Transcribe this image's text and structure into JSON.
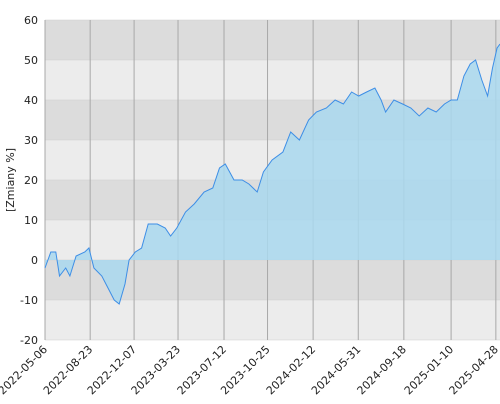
{
  "chart_data": {
    "type": "area",
    "y_label": "[Zmiany %]",
    "x": [
      "2022-05-06",
      "2022-05-20",
      "2022-06-01",
      "2022-06-10",
      "2022-06-25",
      "2022-07-05",
      "2022-07-20",
      "2022-08-10",
      "2022-08-20",
      "2022-09-01",
      "2022-09-20",
      "2022-10-05",
      "2022-10-20",
      "2022-11-01",
      "2022-11-15",
      "2022-11-25",
      "2022-12-10",
      "2022-12-25",
      "2023-01-10",
      "2023-02-01",
      "2023-02-20",
      "2023-03-05",
      "2023-03-20",
      "2023-04-10",
      "2023-05-01",
      "2023-05-25",
      "2023-06-15",
      "2023-07-01",
      "2023-07-15",
      "2023-08-05",
      "2023-08-25",
      "2023-09-10",
      "2023-09-30",
      "2023-10-15",
      "2023-11-05",
      "2023-12-01",
      "2023-12-20",
      "2024-01-10",
      "2024-02-01",
      "2024-02-20",
      "2024-03-15",
      "2024-04-05",
      "2024-04-25",
      "2024-05-15",
      "2024-06-01",
      "2024-06-20",
      "2024-07-10",
      "2024-07-25",
      "2024-08-05",
      "2024-08-25",
      "2024-09-15",
      "2024-10-05",
      "2024-10-25",
      "2024-11-15",
      "2024-12-05",
      "2024-12-25",
      "2025-01-10",
      "2025-01-25",
      "2025-02-10",
      "2025-02-25",
      "2025-03-10",
      "2025-03-25",
      "2025-04-08",
      "2025-04-20",
      "2025-05-01",
      "2025-05-08"
    ],
    "series": [
      {
        "color": "#3d8ee6",
        "values": [
          -2,
          2,
          2,
          -4,
          -2,
          -4,
          1,
          2,
          3,
          -2,
          -4,
          -7,
          -10,
          -11,
          -6,
          0,
          2,
          3,
          9,
          9,
          8,
          6,
          8,
          12,
          14,
          17,
          18,
          23,
          24,
          20,
          20,
          19,
          17,
          22,
          25,
          27,
          32,
          30,
          35,
          37,
          38,
          40,
          39,
          42,
          41,
          42,
          43,
          40,
          37,
          40,
          39,
          38,
          36,
          38,
          37,
          39,
          40,
          40,
          46,
          49,
          50,
          45,
          41,
          48,
          53,
          54
        ]
      }
    ],
    "area_color": "#a9d8ee",
    "xlim": [
      "2022-05-06",
      "2025-05-08"
    ],
    "xticks": [
      "2022-05-06",
      "2022-08-23",
      "2022-12-07",
      "2023-03-23",
      "2023-07-12",
      "2023-10-25",
      "2024-02-12",
      "2024-05-31",
      "2024-09-18",
      "2025-01-10",
      "2025-04-28"
    ],
    "ylim": [
      -20,
      60
    ],
    "yticks": [
      -20,
      -10,
      0,
      10,
      20,
      30,
      40,
      50,
      60
    ],
    "grid": true
  }
}
